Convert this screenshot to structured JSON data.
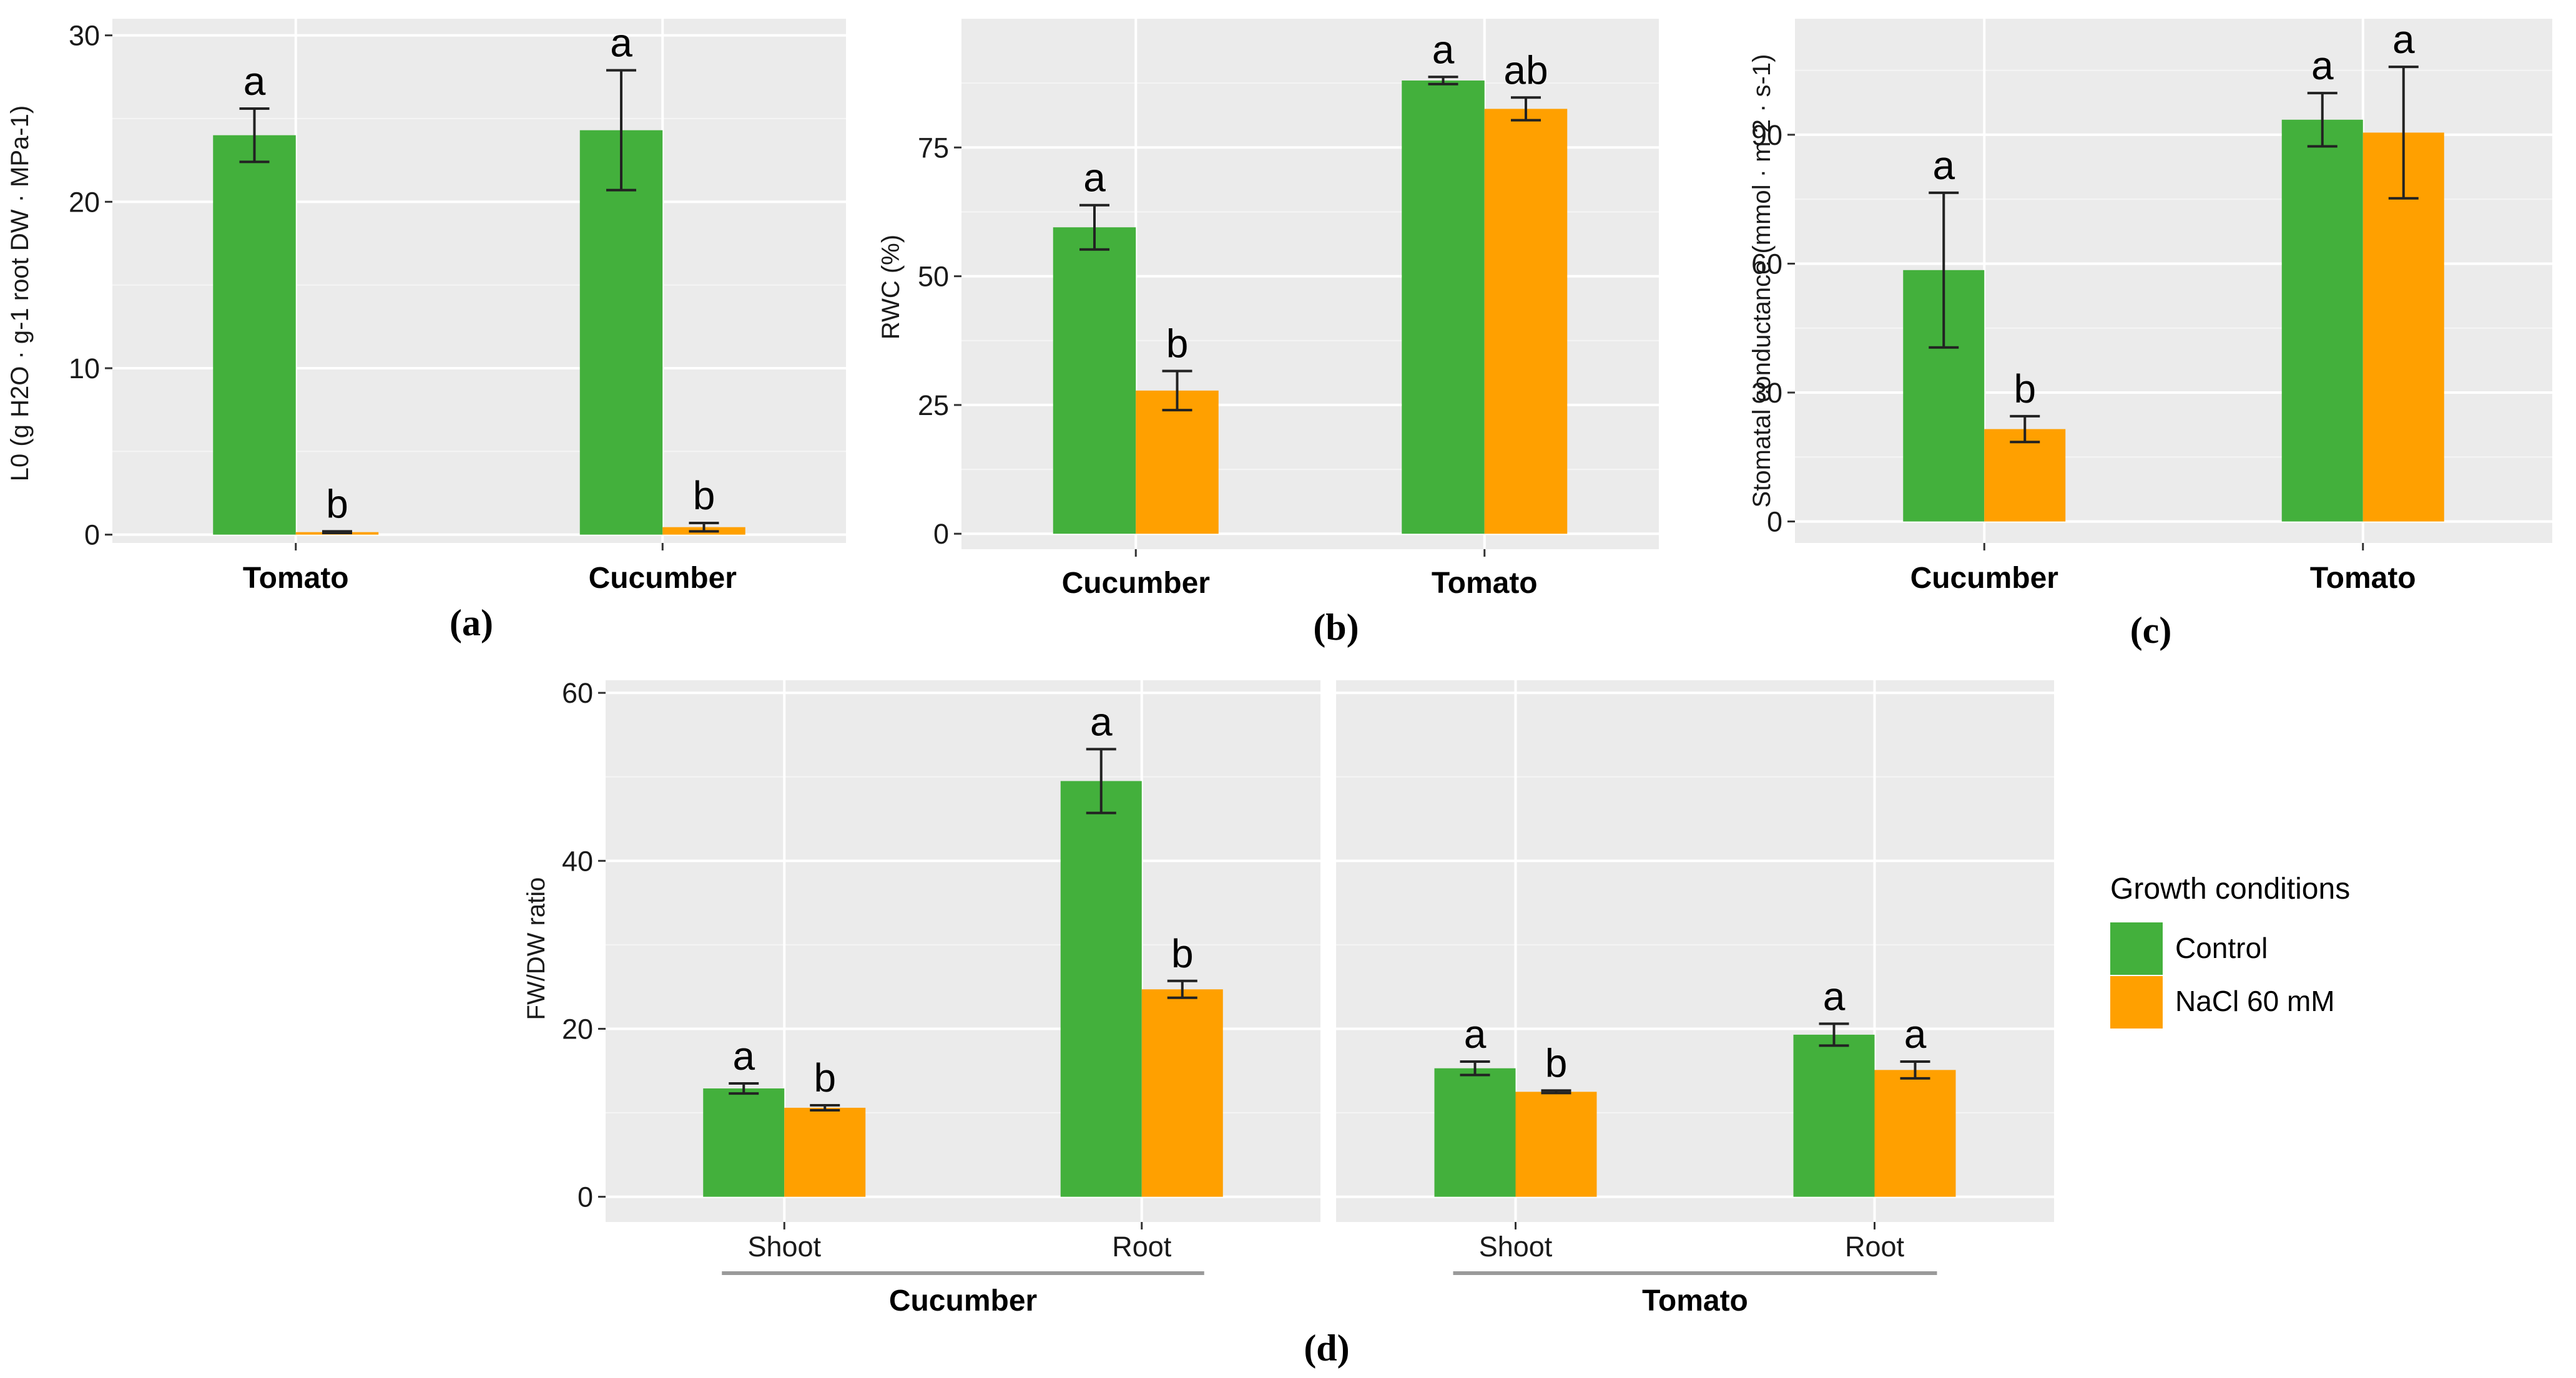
{
  "colors": {
    "control": "#43b03c",
    "nacl": "#ffa000"
  },
  "legend": {
    "title": "Growth conditions",
    "items": [
      {
        "label": "Control",
        "color": "#43b03c"
      },
      {
        "label": "NaCl 60 mM",
        "color": "#ffa000"
      }
    ]
  },
  "chart_data": [
    {
      "id": "a",
      "caption": "(a)",
      "type": "bar",
      "ylabel": "L0 (g H2O · g-1 root DW · MPa-1)",
      "ylim": [
        -0.5,
        31
      ],
      "yticks": [
        0,
        10,
        20,
        30
      ],
      "categories": [
        "Tomato",
        "Cucumber"
      ],
      "series": [
        {
          "name": "Control",
          "values": [
            24.0,
            24.3
          ],
          "errors": [
            1.6,
            3.6
          ],
          "letters": [
            "a",
            "a"
          ]
        },
        {
          "name": "NaCl 60 mM",
          "values": [
            0.15,
            0.45
          ],
          "errors": [
            0.05,
            0.25
          ],
          "letters": [
            "b",
            "b"
          ]
        }
      ]
    },
    {
      "id": "b",
      "caption": "(b)",
      "type": "bar",
      "ylabel": "RWC (%)",
      "ylim": [
        -3,
        100
      ],
      "yticks": [
        0,
        25,
        50,
        75
      ],
      "categories": [
        "Cucumber",
        "Tomato"
      ],
      "series": [
        {
          "name": "Control",
          "values": [
            59.5,
            88.0
          ],
          "errors": [
            4.3,
            0.7
          ],
          "letters": [
            "a",
            "a"
          ]
        },
        {
          "name": "NaCl 60 mM",
          "values": [
            27.8,
            82.5
          ],
          "errors": [
            3.8,
            2.2
          ],
          "letters": [
            "b",
            "ab"
          ]
        }
      ]
    },
    {
      "id": "c",
      "caption": "(c)",
      "type": "bar",
      "ylabel": "Stomatal conductance (mmol · m-2 · s-1)",
      "ylim": [
        -5,
        117
      ],
      "yticks": [
        0,
        30,
        60,
        90
      ],
      "categories": [
        "Cucumber",
        "Tomato"
      ],
      "series": [
        {
          "name": "Control",
          "values": [
            58.5,
            93.5
          ],
          "errors": [
            18.0,
            6.2
          ],
          "letters": [
            "a",
            "a"
          ]
        },
        {
          "name": "NaCl 60 mM",
          "values": [
            21.5,
            90.5
          ],
          "errors": [
            3.0,
            15.3
          ],
          "letters": [
            "b",
            "a"
          ]
        }
      ]
    },
    {
      "id": "d",
      "caption": "(d)",
      "type": "bar",
      "ylabel": "FW/DW ratio",
      "ylim": [
        -3,
        61.5
      ],
      "yticks": [
        0,
        20,
        40,
        60
      ],
      "facets": [
        {
          "group": "Cucumber",
          "categories": [
            "Shoot",
            "Root"
          ],
          "series": [
            {
              "name": "Control",
              "values": [
                12.9,
                49.5
              ],
              "errors": [
                0.6,
                3.8
              ],
              "letters": [
                "a",
                "a"
              ]
            },
            {
              "name": "NaCl 60 mM",
              "values": [
                10.6,
                24.7
              ],
              "errors": [
                0.3,
                1.0
              ],
              "letters": [
                "b",
                "b"
              ]
            }
          ]
        },
        {
          "group": "Tomato",
          "categories": [
            "Shoot",
            "Root"
          ],
          "series": [
            {
              "name": "Control",
              "values": [
                15.3,
                19.3
              ],
              "errors": [
                0.8,
                1.3
              ],
              "letters": [
                "a",
                "a"
              ]
            },
            {
              "name": "NaCl 60 mM",
              "values": [
                12.5,
                15.1
              ],
              "errors": [
                0.15,
                1.0
              ],
              "letters": [
                "b",
                "a"
              ]
            }
          ]
        }
      ]
    }
  ]
}
